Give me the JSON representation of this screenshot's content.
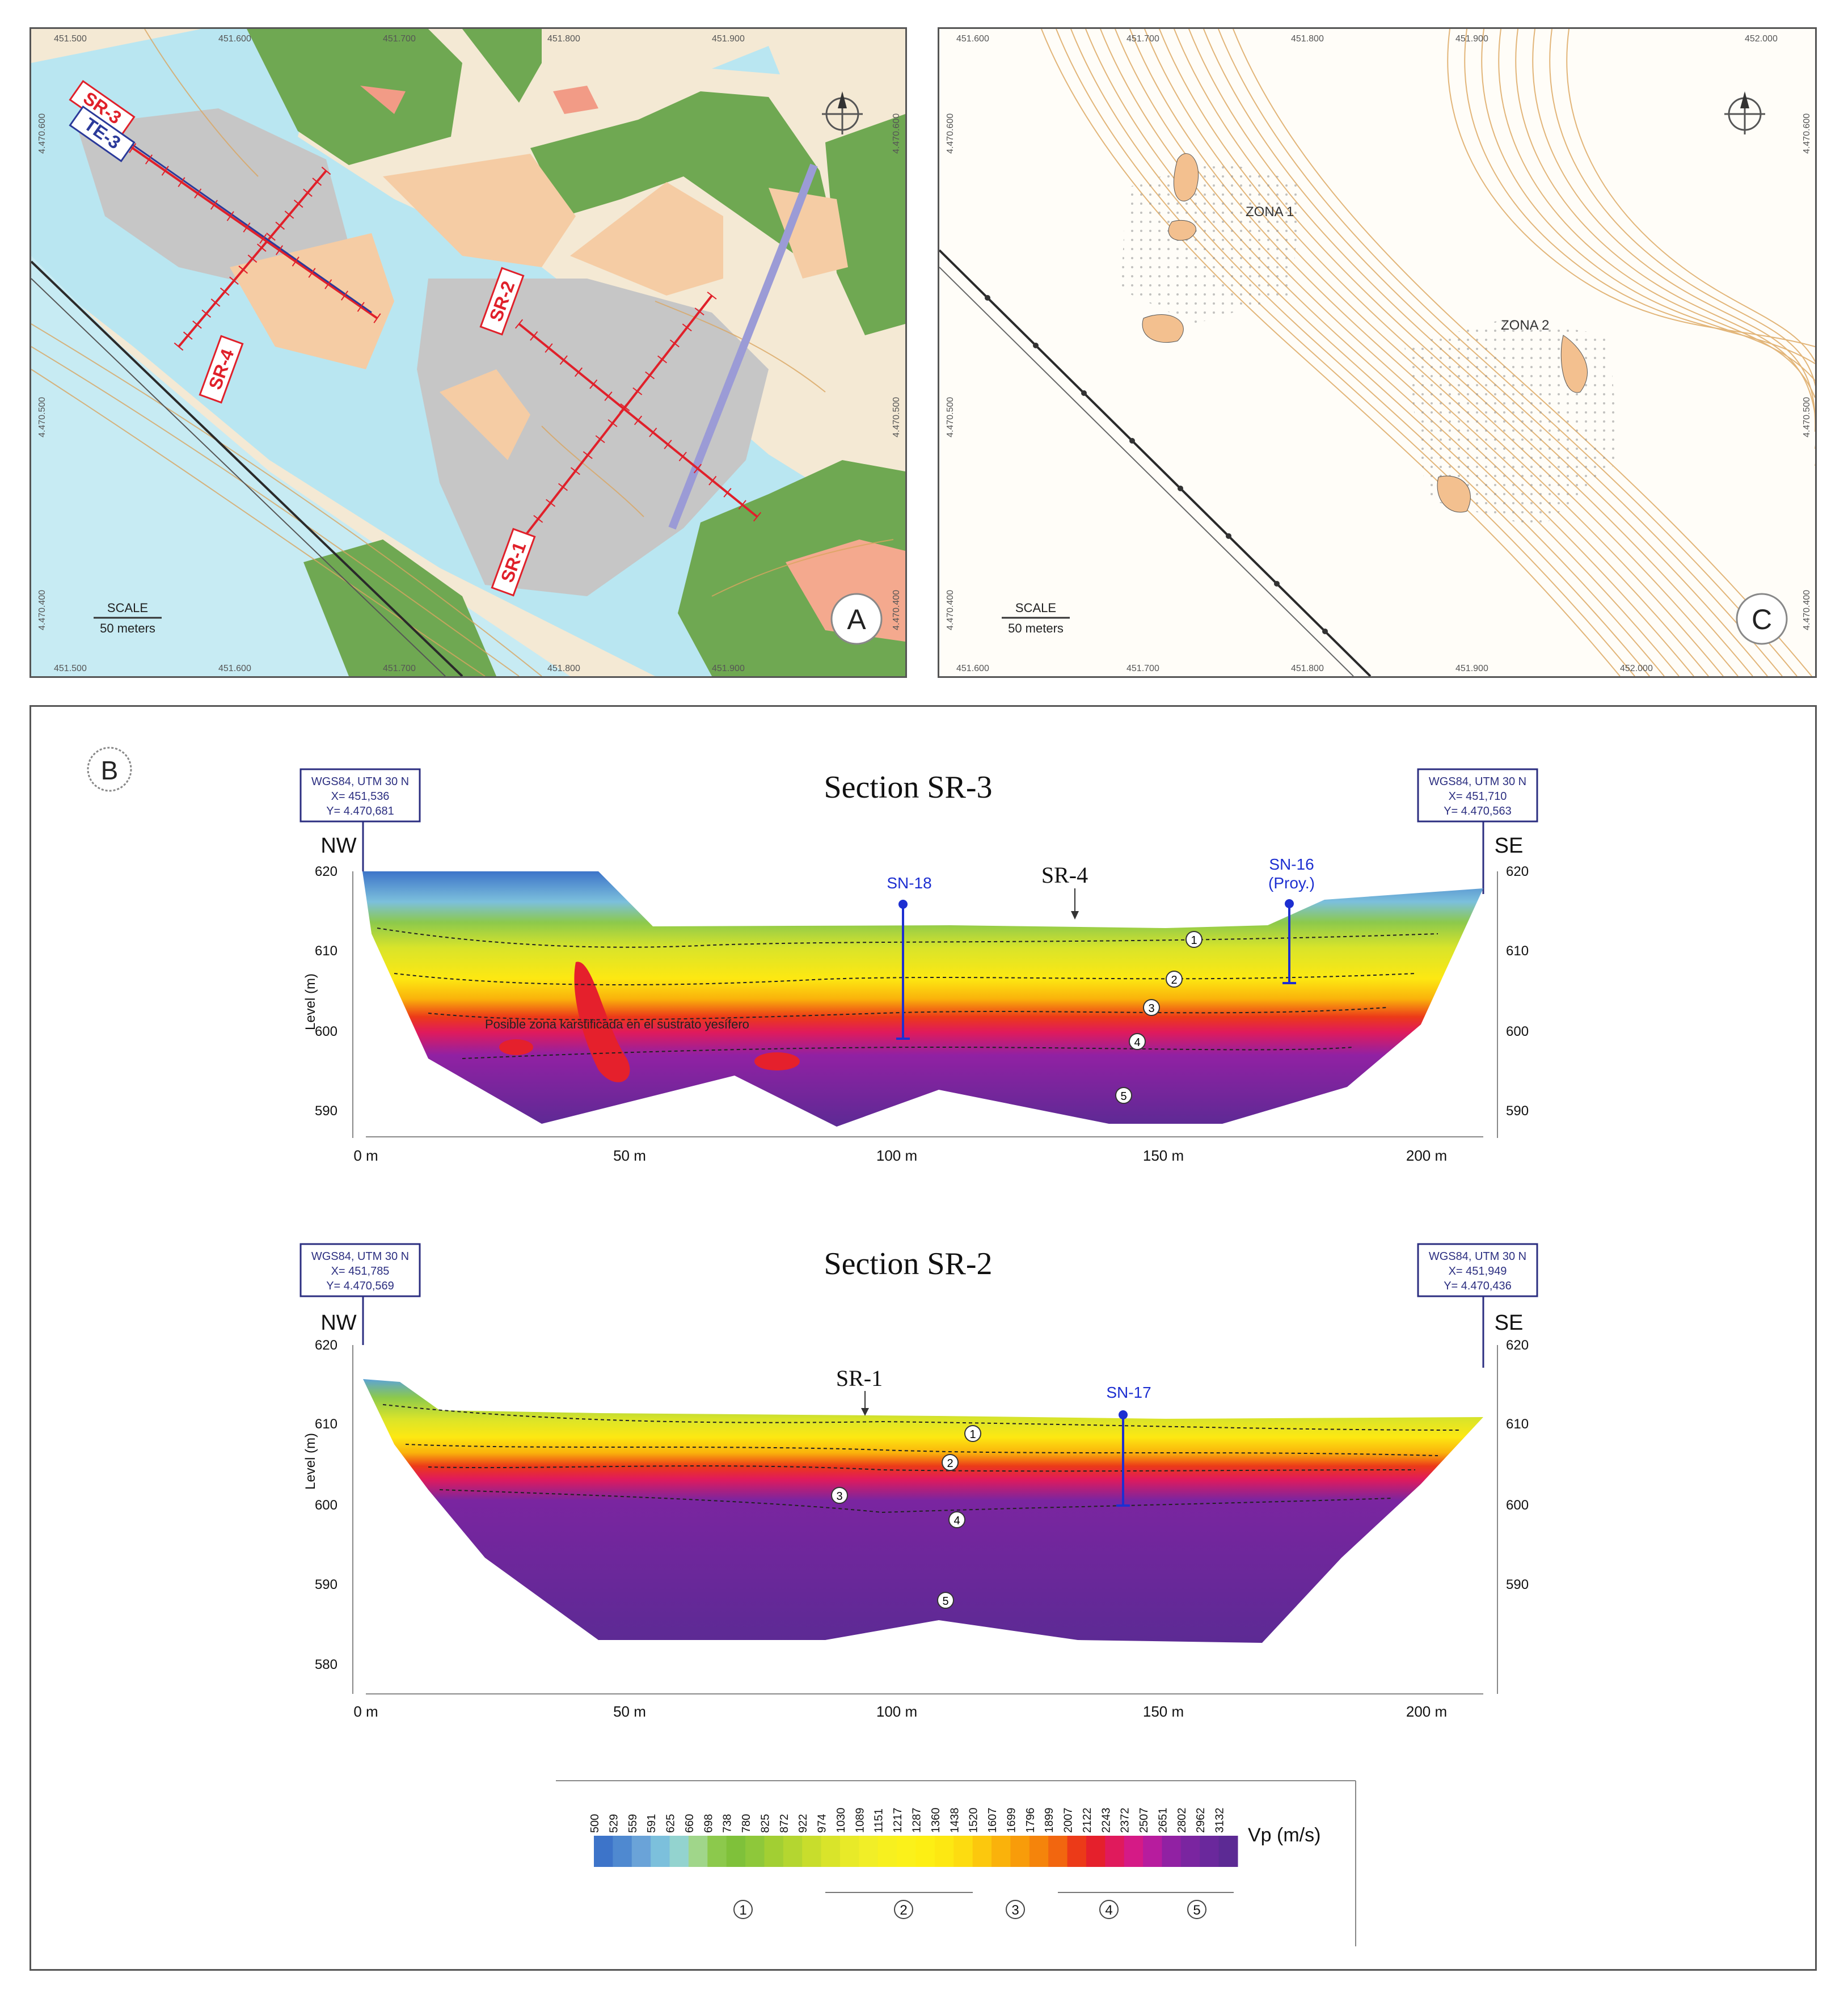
{
  "panel_a": {
    "badge": "A",
    "scale": {
      "title": "SCALE",
      "value": "50 meters"
    },
    "line_labels": [
      "SR-3",
      "TE-3",
      "SR-4",
      "SR-2",
      "SR-1"
    ],
    "easting_ticks": [
      "451.500",
      "451.600",
      "451.700",
      "451.800",
      "451.900"
    ],
    "northing_ticks": [
      "4.470.600",
      "4.470.500",
      "4.470.400"
    ]
  },
  "panel_c": {
    "badge": "C",
    "scale": {
      "title": "SCALE",
      "value": "50 meters"
    },
    "zones": [
      "ZONA 1",
      "ZONA 2"
    ],
    "easting_ticks": [
      "451.600",
      "451.700",
      "451.800",
      "451.900",
      "452.000"
    ],
    "northing_ticks": [
      "4.470.600",
      "4.470.500",
      "4.470.400"
    ]
  },
  "panel_b": {
    "badge": "B",
    "sections": [
      {
        "title": "Section  SR-3",
        "left_coords": [
          "WGS84, UTM 30 N",
          "X= 451,536",
          "Y= 4.470,681"
        ],
        "right_coords": [
          "WGS84, UTM 30 N",
          "X= 451,710",
          "Y= 4.470,563"
        ],
        "left_dir": "NW",
        "right_dir": "SE",
        "ylabel": "Level (m)",
        "y_ticks": [
          "620",
          "610",
          "600",
          "590"
        ],
        "x_ticks": [
          "0 m",
          "50 m",
          "100 m",
          "150 m",
          "200 m"
        ],
        "crossing": "SR-4",
        "boreholes": [
          "SN-18",
          "SN-16",
          "(Proy.)"
        ],
        "note": "Posible zona karstificada en el sustrato yesífero",
        "layers": [
          "1",
          "2",
          "3",
          "4",
          "5"
        ]
      },
      {
        "title": "Section  SR-2",
        "left_coords": [
          "WGS84, UTM 30 N",
          "X= 451,785",
          "Y= 4.470,569"
        ],
        "right_coords": [
          "WGS84, UTM 30 N",
          "X= 451,949",
          "Y= 4.470,436"
        ],
        "left_dir": "NW",
        "right_dir": "SE",
        "ylabel": "Level (m)",
        "y_ticks": [
          "620",
          "610",
          "600",
          "590",
          "580"
        ],
        "x_ticks": [
          "0 m",
          "50 m",
          "100 m",
          "150 m",
          "200 m"
        ],
        "crossing": "SR-1",
        "boreholes": [
          "SN-17"
        ],
        "layers": [
          "1",
          "2",
          "3",
          "4",
          "5"
        ]
      }
    ],
    "legend": {
      "unit": "Vp (m/s)",
      "values": [
        "500",
        "529",
        "559",
        "591",
        "625",
        "660",
        "698",
        "738",
        "780",
        "825",
        "872",
        "922",
        "974",
        "1030",
        "1089",
        "1151",
        "1217",
        "1287",
        "1360",
        "1438",
        "1520",
        "1607",
        "1699",
        "1796",
        "1899",
        "2007",
        "2122",
        "2243",
        "2372",
        "2507",
        "2651",
        "2802",
        "2962",
        "3132"
      ],
      "colors": [
        "#3d74c9",
        "#4f89d0",
        "#6aa3d8",
        "#7cc0dc",
        "#93d3cf",
        "#a0d68a",
        "#8cc94c",
        "#7fc13a",
        "#8ec83a",
        "#a2cf33",
        "#b4d630",
        "#c8dd2c",
        "#d9e42a",
        "#e8ea28",
        "#f1ee27",
        "#f7f01f",
        "#fbf11a",
        "#fdef14",
        "#fde812",
        "#fddc10",
        "#fcc80d",
        "#fab20b",
        "#f89c0a",
        "#f5840b",
        "#f2660f",
        "#ec3a18",
        "#e5202c",
        "#e01a5c",
        "#d51a86",
        "#b71c9e",
        "#9121a3",
        "#7a25a0",
        "#6a289c",
        "#5c2a94"
      ],
      "groups": [
        "1",
        "2",
        "3",
        "4",
        "5"
      ]
    }
  }
}
